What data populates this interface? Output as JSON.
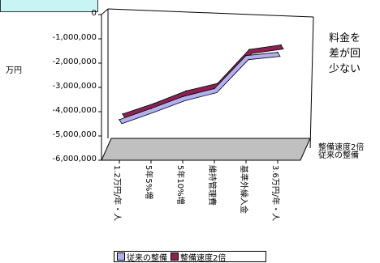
{
  "side_note": [
    "料金を",
    "差が回",
    "少ない"
  ],
  "chart_data": {
    "type": "line",
    "ylabel": "万円",
    "ylim": [
      -6000000,
      0
    ],
    "yticks": [
      "0",
      "-1,000,000",
      "-2,000,000",
      "-3,000,000",
      "-4,000,000",
      "-5,000,000",
      "-6,000,000"
    ],
    "categories": [
      "1.2万円/年・人",
      "5年5%増",
      "5年10%増",
      "維持管理費",
      "基準外繰入金",
      "3.6万円/年・人"
    ],
    "depth_labels": [
      "整備速度2倍",
      "従来の整備"
    ],
    "series": [
      {
        "name": "従来の整備",
        "values": [
          -4870000,
          -4350000,
          -3800000,
          -3430000,
          -1900000,
          -1750000
        ],
        "color": "#b0b0f0"
      },
      {
        "name": "整備速度2倍",
        "values": [
          -4720000,
          -4230000,
          -3650000,
          -3300000,
          -1730000,
          -1520000
        ],
        "color": "#8b2252"
      }
    ],
    "grid": false,
    "legend": "bottom"
  }
}
